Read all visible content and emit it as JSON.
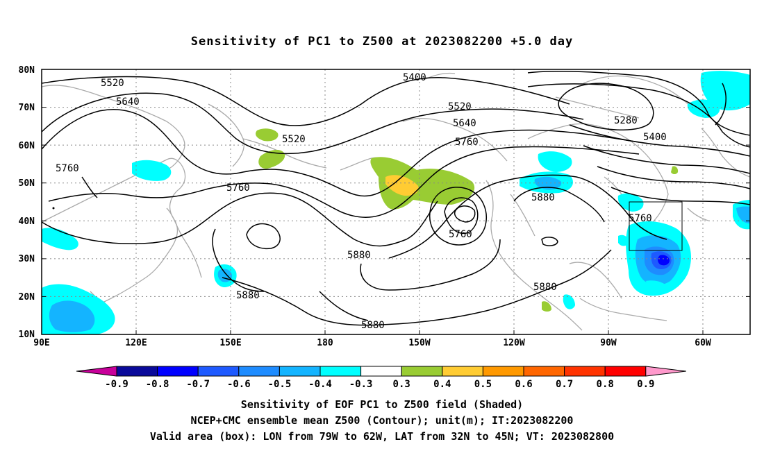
{
  "title": "Sensitivity of PC1 to Z500 at 2023082200 +5.0 day",
  "lat_labels": [
    "80N",
    "70N",
    "60N",
    "50N",
    "40N",
    "30N",
    "20N",
    "10N"
  ],
  "lon_labels": [
    "90E",
    "120E",
    "150E",
    "180",
    "150W",
    "120W",
    "90W",
    "60W"
  ],
  "colorbar": {
    "labels": [
      "-0.9",
      "-0.8",
      "-0.7",
      "-0.6",
      "-0.5",
      "-0.4",
      "-0.3",
      "0.3",
      "0.4",
      "0.5",
      "0.6",
      "0.7",
      "0.8",
      "0.9"
    ],
    "colors": [
      "#0a0a9a",
      "#0000ff",
      "#1e5aff",
      "#1e8cff",
      "#14b4ff",
      "#00ffff",
      "#ffffff",
      "#99cc33",
      "#ffcc33",
      "#ff9900",
      "#ff6600",
      "#ff3300",
      "#ff0000"
    ],
    "under_color": "#c8009a",
    "over_color": "#ff99cc"
  },
  "contour_labels": [
    {
      "text": "5520"
    },
    {
      "text": "5640"
    },
    {
      "text": "5760"
    },
    {
      "text": "5520"
    },
    {
      "text": "5760"
    },
    {
      "text": "5400"
    },
    {
      "text": "5520"
    },
    {
      "text": "5640"
    },
    {
      "text": "5760"
    },
    {
      "text": "5280"
    },
    {
      "text": "5400"
    },
    {
      "text": "5880"
    },
    {
      "text": "5760"
    },
    {
      "text": "5760"
    },
    {
      "text": "5880"
    },
    {
      "text": "5880"
    },
    {
      "text": "5880"
    },
    {
      "text": "5880"
    }
  ],
  "valid_box": {
    "lon_from": "79W",
    "lon_to": "62W",
    "lat_from": "32N",
    "lat_to": "45N"
  },
  "captions": [
    "Sensitivity of EOF PC1 to Z500 field (Shaded)",
    "NCEP+CMC ensemble mean Z500 (Contour); unit(m); IT:2023082200",
    "Valid area (box): LON from 79W to 62W, LAT from 32N to 45N; VT: 2023082800"
  ]
}
